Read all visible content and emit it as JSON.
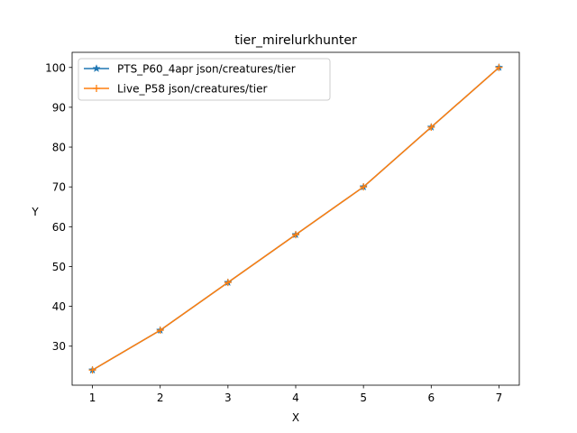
{
  "chart_data": {
    "type": "line",
    "title": "tier_mirelurkhunter",
    "xlabel": "X",
    "ylabel": "Y",
    "xlim": [
      0.7,
      7.3
    ],
    "ylim": [
      20.2,
      103.8
    ],
    "x_ticks": [
      1,
      2,
      3,
      4,
      5,
      6,
      7
    ],
    "y_ticks": [
      30,
      40,
      50,
      60,
      70,
      80,
      90,
      100
    ],
    "grid": false,
    "legend_position": "top-left",
    "x": [
      1,
      2,
      3,
      4,
      5,
      6,
      7
    ],
    "series": [
      {
        "name": "PTS_P60_4apr json/creatures/tier",
        "values": [
          24,
          34,
          46,
          58,
          70,
          85,
          100
        ],
        "color": "#1f77b4",
        "marker": "star"
      },
      {
        "name": "Live_P58 json/creatures/tier",
        "values": [
          24,
          34,
          46,
          58,
          70,
          85,
          100
        ],
        "color": "#ff7f0e",
        "marker": "plus"
      }
    ]
  }
}
